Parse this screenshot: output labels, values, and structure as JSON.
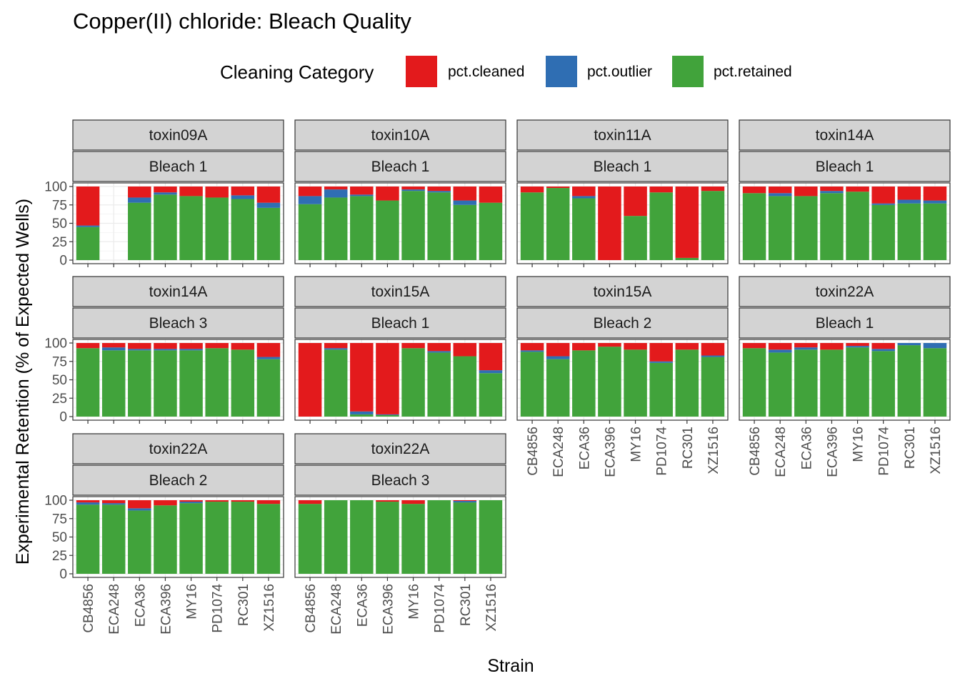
{
  "chart_data": {
    "type": "bar",
    "stacked": true,
    "title": "Copper(II) chloride: Bleach Quality",
    "xlabel": "Strain",
    "ylabel": "Experimental Retention (% of Expected Wells)",
    "ylim": [
      0,
      100
    ],
    "yticks": [
      "0",
      "25",
      "50",
      "75",
      "100"
    ],
    "legend": {
      "title": "Cleaning Category",
      "position": "top",
      "entries": [
        {
          "name": "pct.cleaned",
          "color": "#E31A1C"
        },
        {
          "name": "pct.outlier",
          "color": "#2F6EB3"
        },
        {
          "name": "pct.retained",
          "color": "#41A33B"
        }
      ]
    },
    "categories": [
      "CB4856",
      "ECA248",
      "ECA36",
      "ECA396",
      "MY16",
      "PD1074",
      "RC301",
      "XZ1516"
    ],
    "stack_order": [
      "pct.retained",
      "pct.outlier",
      "pct.cleaned"
    ],
    "panels": [
      {
        "toxin": "toxin09A",
        "bleach": "Bleach 1",
        "retained": [
          45,
          null,
          78,
          89,
          87,
          85,
          83,
          71
        ],
        "outlier": [
          2,
          null,
          7,
          3,
          0,
          0,
          5,
          7
        ],
        "cleaned": [
          53,
          null,
          15,
          8,
          13,
          15,
          12,
          22
        ]
      },
      {
        "toxin": "toxin10A",
        "bleach": "Bleach 1",
        "retained": [
          76,
          85,
          87,
          81,
          94,
          92,
          75,
          78
        ],
        "outlier": [
          11,
          11,
          2,
          0,
          2,
          2,
          6,
          0
        ],
        "cleaned": [
          13,
          4,
          11,
          19,
          4,
          6,
          19,
          22
        ]
      },
      {
        "toxin": "toxin11A",
        "bleach": "Bleach 1",
        "retained": [
          92,
          98,
          84,
          0,
          60,
          92,
          3,
          94
        ],
        "outlier": [
          0,
          0,
          3,
          0,
          0,
          0,
          0,
          0
        ],
        "cleaned": [
          8,
          2,
          13,
          100,
          40,
          8,
          97,
          6
        ]
      },
      {
        "toxin": "toxin14A",
        "bleach": "Bleach 1",
        "retained": [
          91,
          87,
          87,
          91,
          93,
          75,
          77,
          77
        ],
        "outlier": [
          0,
          4,
          0,
          3,
          0,
          2,
          5,
          4
        ],
        "cleaned": [
          9,
          9,
          13,
          6,
          7,
          23,
          18,
          19
        ]
      },
      {
        "toxin": "toxin14A",
        "bleach": "Bleach 3",
        "retained": [
          93,
          90,
          90,
          90,
          90,
          93,
          91,
          78
        ],
        "outlier": [
          0,
          4,
          2,
          2,
          2,
          0,
          0,
          3
        ],
        "cleaned": [
          7,
          6,
          8,
          8,
          8,
          7,
          9,
          19
        ]
      },
      {
        "toxin": "toxin15A",
        "bleach": "Bleach 1",
        "retained": [
          0,
          91,
          3,
          2,
          93,
          87,
          82,
          59
        ],
        "outlier": [
          0,
          2,
          4,
          1,
          0,
          2,
          0,
          4
        ],
        "cleaned": [
          100,
          7,
          93,
          97,
          7,
          11,
          18,
          37
        ]
      },
      {
        "toxin": "toxin15A",
        "bleach": "Bleach 2",
        "retained": [
          88,
          78,
          90,
          95,
          91,
          73,
          91,
          81
        ],
        "outlier": [
          2,
          4,
          0,
          0,
          0,
          2,
          0,
          2
        ],
        "cleaned": [
          10,
          18,
          10,
          5,
          9,
          25,
          9,
          17
        ]
      },
      {
        "toxin": "toxin22A",
        "bleach": "Bleach 1",
        "retained": [
          93,
          87,
          91,
          91,
          94,
          89,
          97,
          93
        ],
        "outlier": [
          0,
          4,
          3,
          0,
          2,
          3,
          3,
          7
        ],
        "cleaned": [
          7,
          9,
          6,
          9,
          4,
          8,
          0,
          0
        ]
      },
      {
        "toxin": "toxin22A",
        "bleach": "Bleach 2",
        "retained": [
          94,
          94,
          86,
          93,
          96,
          98,
          98,
          95
        ],
        "outlier": [
          3,
          2,
          3,
          0,
          2,
          0,
          0,
          0
        ],
        "cleaned": [
          3,
          4,
          11,
          7,
          2,
          2,
          2,
          5
        ]
      },
      {
        "toxin": "toxin22A",
        "bleach": "Bleach 3",
        "retained": [
          95,
          100,
          100,
          98,
          95,
          100,
          97,
          100
        ],
        "outlier": [
          0,
          0,
          0,
          0,
          0,
          0,
          2,
          0
        ],
        "cleaned": [
          5,
          0,
          0,
          2,
          5,
          0,
          1,
          0
        ]
      }
    ]
  }
}
